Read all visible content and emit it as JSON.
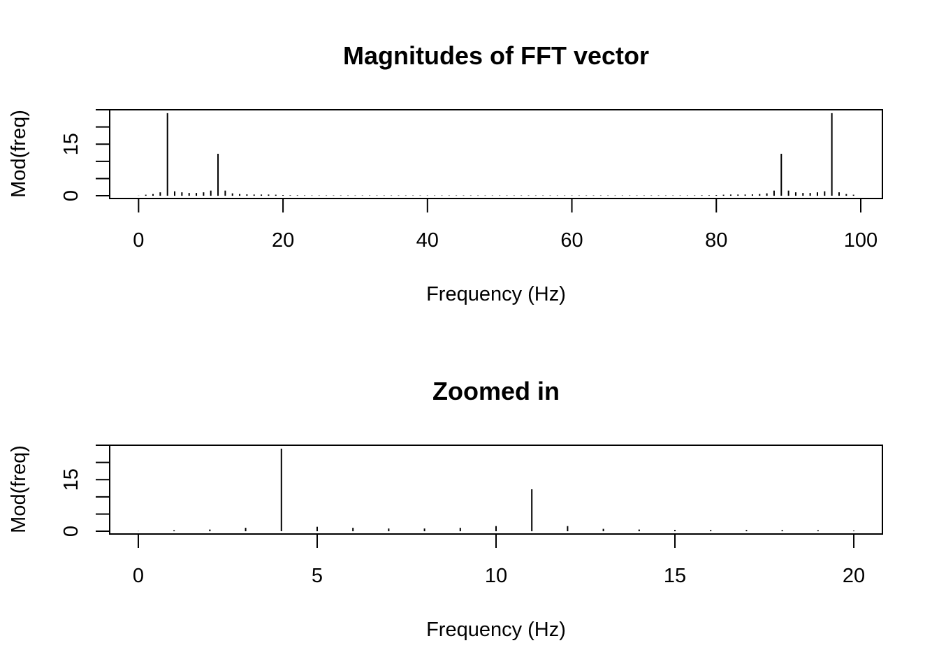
{
  "chart_data": [
    {
      "type": "bar",
      "title": "Magnitudes of FFT vector",
      "xlabel": "Frequency (Hz)",
      "ylabel": "Mod(freq)",
      "xlim": [
        -4,
        103
      ],
      "ylim": [
        -0.8,
        25
      ],
      "xticks": [
        0,
        20,
        40,
        60,
        80,
        100
      ],
      "yticks": [
        0,
        5,
        10,
        15,
        20,
        25
      ],
      "ytick_labels": [
        "0",
        "",
        "",
        "15",
        "",
        ""
      ],
      "grid": false,
      "x": [
        0,
        1,
        2,
        3,
        4,
        5,
        6,
        7,
        8,
        9,
        10,
        11,
        12,
        13,
        14,
        15,
        16,
        17,
        18,
        19,
        20,
        21,
        22,
        23,
        24,
        25,
        26,
        27,
        28,
        29,
        30,
        31,
        32,
        33,
        34,
        35,
        36,
        37,
        38,
        39,
        40,
        41,
        42,
        43,
        44,
        45,
        46,
        47,
        48,
        49,
        50,
        51,
        52,
        53,
        54,
        55,
        56,
        57,
        58,
        59,
        60,
        61,
        62,
        63,
        64,
        65,
        66,
        67,
        68,
        69,
        70,
        71,
        72,
        73,
        74,
        75,
        76,
        77,
        78,
        79,
        80,
        81,
        82,
        83,
        84,
        85,
        86,
        87,
        88,
        89,
        90,
        91,
        92,
        93,
        94,
        95,
        96,
        97,
        98,
        99
      ],
      "values": [
        0.05,
        0.3,
        0.5,
        1.0,
        24.0,
        1.3,
        1.0,
        0.8,
        0.8,
        1.0,
        1.5,
        12.2,
        1.5,
        0.7,
        0.5,
        0.4,
        0.35,
        0.35,
        0.35,
        0.3,
        0.2,
        0.15,
        0.15,
        0.12,
        0.1,
        0.1,
        0.1,
        0.1,
        0.1,
        0.1,
        0.1,
        0.1,
        0.1,
        0.1,
        0.1,
        0.1,
        0.1,
        0.1,
        0.1,
        0.1,
        0.1,
        0.1,
        0.1,
        0.1,
        0.1,
        0.1,
        0.1,
        0.1,
        0.1,
        0.1,
        0.1,
        0.1,
        0.1,
        0.1,
        0.1,
        0.1,
        0.1,
        0.1,
        0.1,
        0.1,
        0.1,
        0.1,
        0.1,
        0.1,
        0.1,
        0.1,
        0.1,
        0.1,
        0.1,
        0.1,
        0.1,
        0.1,
        0.1,
        0.1,
        0.1,
        0.1,
        0.1,
        0.12,
        0.15,
        0.15,
        0.2,
        0.3,
        0.35,
        0.35,
        0.35,
        0.4,
        0.5,
        0.7,
        1.5,
        12.2,
        1.5,
        1.0,
        0.8,
        0.8,
        1.0,
        1.3,
        24.0,
        1.0,
        0.5,
        0.3
      ]
    },
    {
      "type": "bar",
      "title": "Zoomed in",
      "xlabel": "Frequency (Hz)",
      "ylabel": "Mod(freq)",
      "xlim": [
        -0.8,
        20.8
      ],
      "ylim": [
        -0.8,
        25
      ],
      "xticks": [
        0,
        5,
        10,
        15,
        20
      ],
      "yticks": [
        0,
        5,
        10,
        15,
        20,
        25
      ],
      "ytick_labels": [
        "0",
        "",
        "",
        "15",
        "",
        ""
      ],
      "grid": false,
      "x": [
        0,
        1,
        2,
        3,
        4,
        5,
        6,
        7,
        8,
        9,
        10,
        11,
        12,
        13,
        14,
        15,
        16,
        17,
        18,
        19,
        20
      ],
      "values": [
        0.05,
        0.3,
        0.5,
        1.0,
        24.0,
        1.3,
        1.0,
        0.8,
        0.8,
        1.0,
        1.5,
        12.2,
        1.5,
        0.7,
        0.5,
        0.4,
        0.35,
        0.35,
        0.35,
        0.3,
        0.2
      ]
    }
  ]
}
